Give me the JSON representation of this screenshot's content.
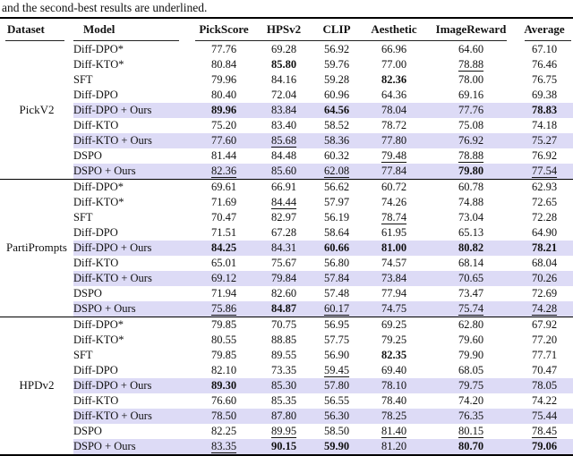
{
  "caption": "and the second-best results are underlined.",
  "highlight_color": "#dddbf6",
  "table": {
    "columns": [
      "Dataset",
      "Model",
      "PickScore",
      "HPSv2",
      "CLIP",
      "Aesthetic",
      "ImageReward",
      "Average"
    ],
    "groups": [
      {
        "dataset": "PickV2",
        "rows": [
          {
            "model": "Diff-DPO*",
            "values": [
              "77.76",
              "69.28",
              "56.92",
              "66.96",
              "64.60",
              "67.10"
            ],
            "bold": [],
            "underline": [],
            "highlight": false
          },
          {
            "model": "Diff-KTO*",
            "values": [
              "80.84",
              "85.80",
              "59.76",
              "77.00",
              "78.88",
              "76.46"
            ],
            "bold": [
              1
            ],
            "underline": [
              4
            ],
            "highlight": false
          },
          {
            "model": "SFT",
            "values": [
              "79.96",
              "84.16",
              "59.28",
              "82.36",
              "78.00",
              "76.75"
            ],
            "bold": [
              3
            ],
            "underline": [],
            "highlight": false
          },
          {
            "model": "Diff-DPO",
            "values": [
              "80.40",
              "72.04",
              "60.96",
              "64.36",
              "69.16",
              "69.38"
            ],
            "bold": [],
            "underline": [],
            "highlight": false
          },
          {
            "model": "Diff-DPO + Ours",
            "values": [
              "89.96",
              "83.84",
              "64.56",
              "78.04",
              "77.76",
              "78.83"
            ],
            "bold": [
              0,
              2,
              5
            ],
            "underline": [],
            "highlight": true
          },
          {
            "model": "Diff-KTO",
            "values": [
              "75.20",
              "83.40",
              "58.52",
              "78.72",
              "75.08",
              "74.18"
            ],
            "bold": [],
            "underline": [],
            "highlight": false
          },
          {
            "model": "Diff-KTO + Ours",
            "values": [
              "77.60",
              "85.68",
              "58.36",
              "77.80",
              "76.92",
              "75.27"
            ],
            "bold": [],
            "underline": [
              1
            ],
            "highlight": true
          },
          {
            "model": "DSPO",
            "values": [
              "81.44",
              "84.48",
              "60.32",
              "79.48",
              "78.88",
              "76.92"
            ],
            "bold": [],
            "underline": [
              3,
              4
            ],
            "highlight": false
          },
          {
            "model": "DSPO + Ours",
            "values": [
              "82.36",
              "85.60",
              "62.08",
              "77.84",
              "79.80",
              "77.54"
            ],
            "bold": [
              4
            ],
            "underline": [
              0,
              2,
              5
            ],
            "highlight": true
          }
        ]
      },
      {
        "dataset": "PartiPrompts",
        "rows": [
          {
            "model": "Diff-DPO*",
            "values": [
              "69.61",
              "66.91",
              "56.62",
              "60.72",
              "60.78",
              "62.93"
            ],
            "bold": [],
            "underline": [],
            "highlight": false
          },
          {
            "model": "Diff-KTO*",
            "values": [
              "71.69",
              "84.44",
              "57.97",
              "74.26",
              "74.88",
              "72.65"
            ],
            "bold": [],
            "underline": [
              1
            ],
            "highlight": false
          },
          {
            "model": "SFT",
            "values": [
              "70.47",
              "82.97",
              "56.19",
              "78.74",
              "73.04",
              "72.28"
            ],
            "bold": [],
            "underline": [
              3
            ],
            "highlight": false
          },
          {
            "model": "Diff-DPO",
            "values": [
              "71.51",
              "67.28",
              "58.64",
              "61.95",
              "65.13",
              "64.90"
            ],
            "bold": [],
            "underline": [],
            "highlight": false
          },
          {
            "model": "Diff-DPO + Ours",
            "values": [
              "84.25",
              "84.31",
              "60.66",
              "81.00",
              "80.82",
              "78.21"
            ],
            "bold": [
              0,
              2,
              3,
              4,
              5
            ],
            "underline": [],
            "highlight": true
          },
          {
            "model": "Diff-KTO",
            "values": [
              "65.01",
              "75.67",
              "56.80",
              "74.57",
              "68.14",
              "68.04"
            ],
            "bold": [],
            "underline": [],
            "highlight": false
          },
          {
            "model": "Diff-KTO + Ours",
            "values": [
              "69.12",
              "79.84",
              "57.84",
              "73.84",
              "70.65",
              "70.26"
            ],
            "bold": [],
            "underline": [],
            "highlight": true
          },
          {
            "model": "DSPO",
            "values": [
              "71.94",
              "82.60",
              "57.48",
              "77.94",
              "73.47",
              "72.69"
            ],
            "bold": [],
            "underline": [],
            "highlight": false
          },
          {
            "model": "DSPO + Ours",
            "values": [
              "75.86",
              "84.87",
              "60.17",
              "74.75",
              "75.74",
              "74.28"
            ],
            "bold": [
              1
            ],
            "underline": [
              0,
              2,
              4,
              5
            ],
            "highlight": true
          }
        ]
      },
      {
        "dataset": "HPDv2",
        "rows": [
          {
            "model": "Diff-DPO*",
            "values": [
              "79.85",
              "70.75",
              "56.95",
              "69.25",
              "62.80",
              "67.92"
            ],
            "bold": [],
            "underline": [],
            "highlight": false
          },
          {
            "model": "Diff-KTO*",
            "values": [
              "80.55",
              "88.85",
              "57.75",
              "79.25",
              "79.60",
              "77.20"
            ],
            "bold": [],
            "underline": [],
            "highlight": false
          },
          {
            "model": "SFT",
            "values": [
              "79.85",
              "89.55",
              "56.90",
              "82.35",
              "79.90",
              "77.71"
            ],
            "bold": [
              3
            ],
            "underline": [],
            "highlight": false
          },
          {
            "model": "Diff-DPO",
            "values": [
              "82.10",
              "73.35",
              "59.45",
              "69.40",
              "68.05",
              "70.47"
            ],
            "bold": [],
            "underline": [
              2
            ],
            "highlight": false
          },
          {
            "model": "Diff-DPO + Ours",
            "values": [
              "89.30",
              "85.30",
              "57.80",
              "78.10",
              "79.75",
              "78.05"
            ],
            "bold": [
              0
            ],
            "underline": [],
            "highlight": true
          },
          {
            "model": "Diff-KTO",
            "values": [
              "76.60",
              "85.35",
              "56.55",
              "78.40",
              "74.20",
              "74.22"
            ],
            "bold": [],
            "underline": [],
            "highlight": false
          },
          {
            "model": "Diff-KTO + Ours",
            "values": [
              "78.50",
              "87.80",
              "56.30",
              "78.25",
              "76.35",
              "75.44"
            ],
            "bold": [],
            "underline": [],
            "highlight": true
          },
          {
            "model": "DSPO",
            "values": [
              "82.25",
              "89.95",
              "58.50",
              "81.40",
              "80.15",
              "78.45"
            ],
            "bold": [],
            "underline": [
              1,
              3,
              4,
              5
            ],
            "highlight": false
          },
          {
            "model": "DSPO + Ours",
            "values": [
              "83.35",
              "90.15",
              "59.90",
              "81.20",
              "80.70",
              "79.06"
            ],
            "bold": [
              1,
              2,
              4,
              5
            ],
            "underline": [
              0
            ],
            "highlight": true
          }
        ]
      }
    ]
  }
}
